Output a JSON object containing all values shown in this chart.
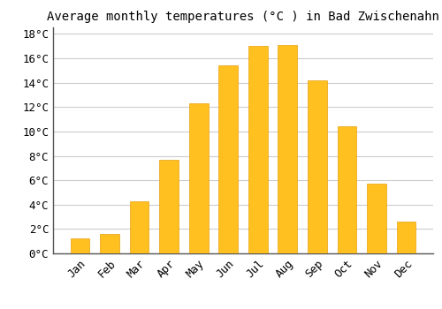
{
  "title": "Average monthly temperatures (°C ) in Bad Zwischenahn",
  "months": [
    "Jan",
    "Feb",
    "Mar",
    "Apr",
    "May",
    "Jun",
    "Jul",
    "Aug",
    "Sep",
    "Oct",
    "Nov",
    "Dec"
  ],
  "values": [
    1.2,
    1.6,
    4.3,
    7.7,
    12.3,
    15.4,
    17.0,
    17.1,
    14.2,
    10.4,
    5.7,
    2.6
  ],
  "bar_color": "#FFC020",
  "bar_edge_color": "#E8A010",
  "background_color": "#FFFFFF",
  "grid_color": "#CCCCCC",
  "ylim": [
    0,
    18.5
  ],
  "yticks": [
    0,
    2,
    4,
    6,
    8,
    10,
    12,
    14,
    16,
    18
  ],
  "ytick_labels": [
    "0°C",
    "2°C",
    "4°C",
    "6°C",
    "8°C",
    "10°C",
    "12°C",
    "14°C",
    "16°C",
    "18°C"
  ],
  "title_fontsize": 10,
  "tick_fontsize": 9,
  "bar_width": 0.65
}
